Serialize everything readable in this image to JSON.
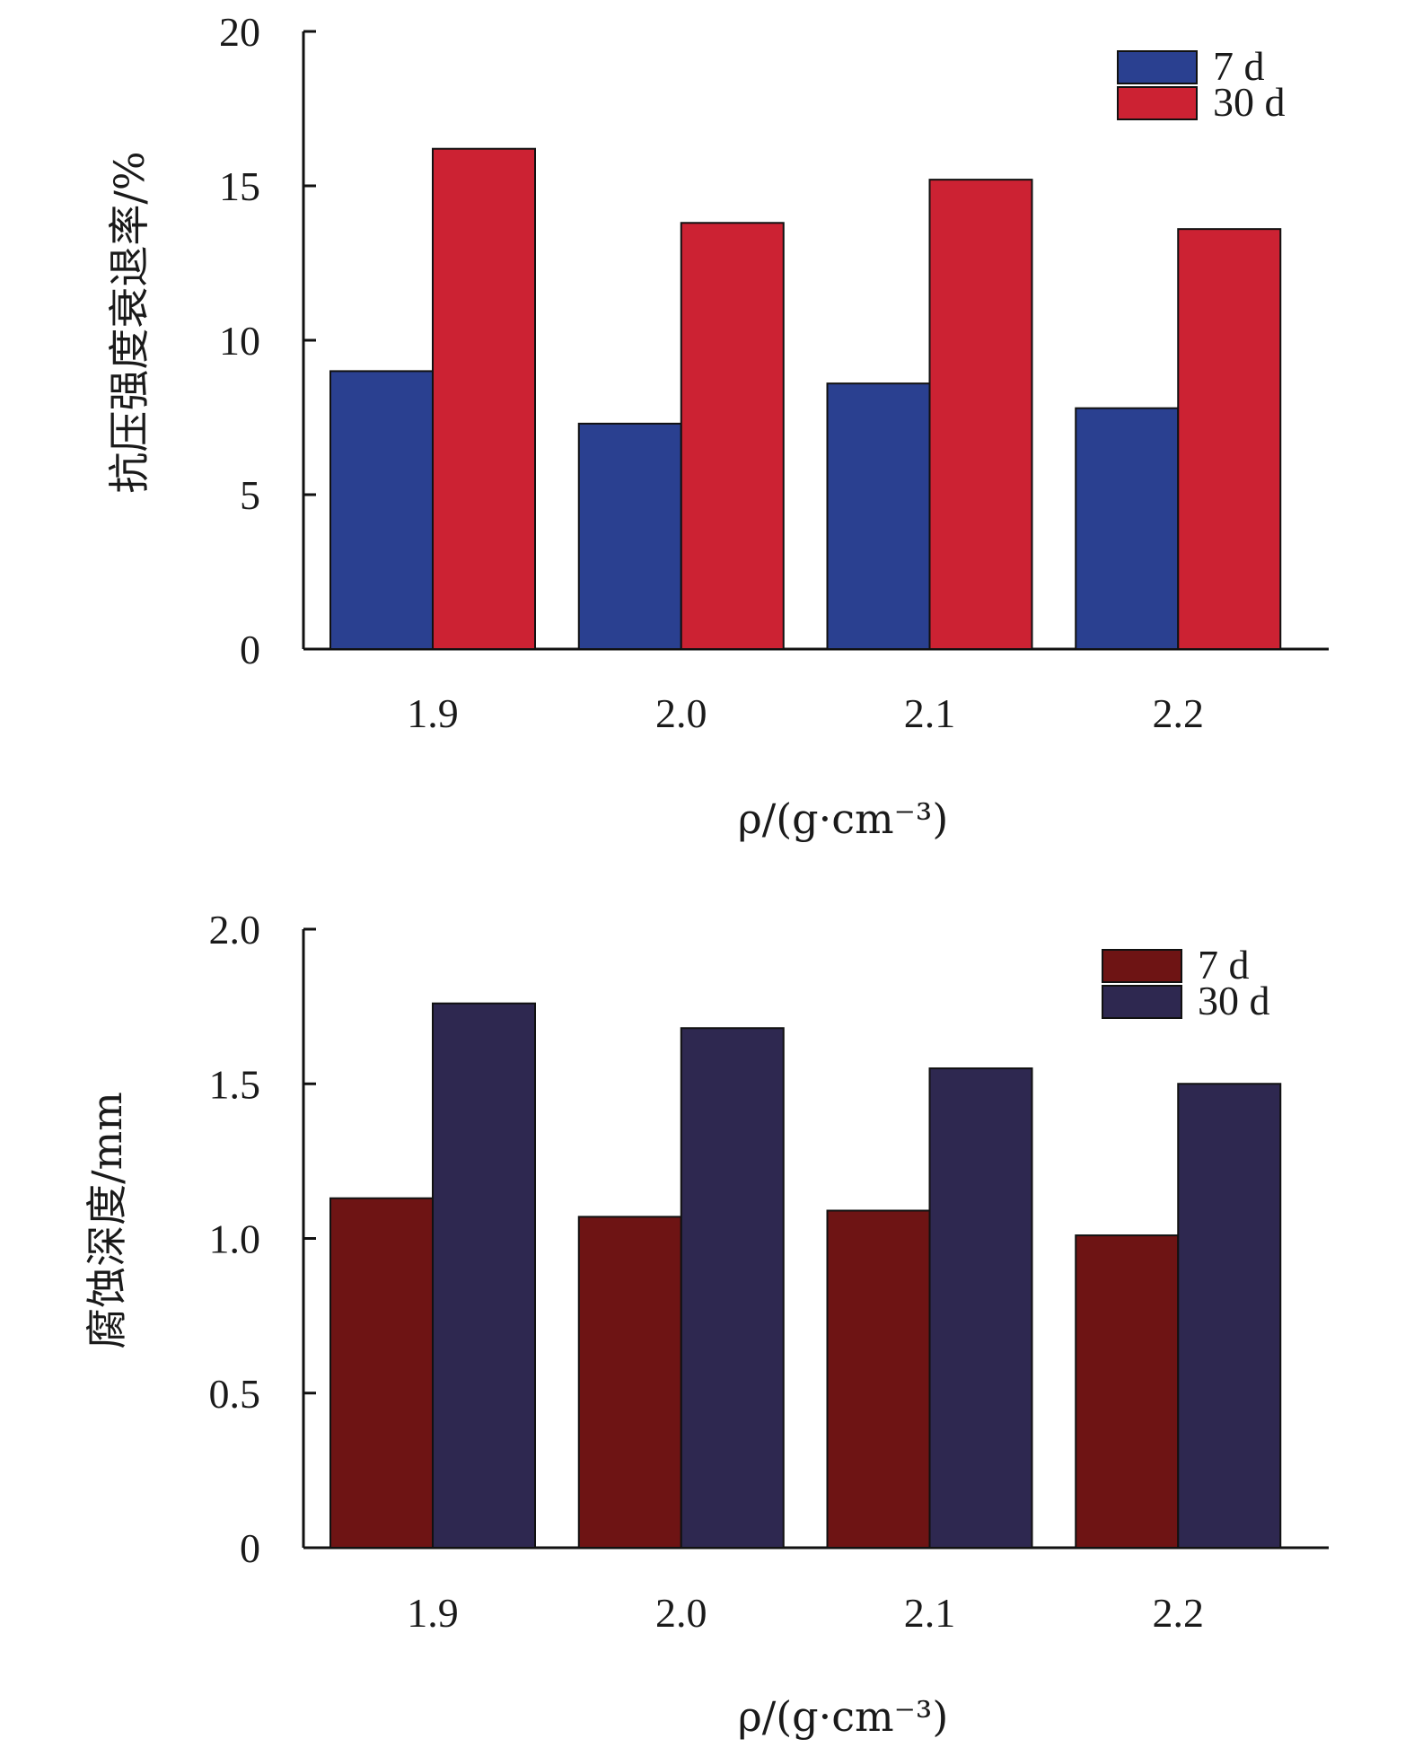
{
  "chart_data": [
    {
      "type": "bar",
      "categories": [
        "1.9",
        "2.0",
        "2.1",
        "2.2"
      ],
      "series": [
        {
          "name": "7 d",
          "color": "#2a4090",
          "values": [
            9.0,
            7.3,
            8.6,
            7.8
          ]
        },
        {
          "name": "30 d",
          "color": "#cc2233",
          "values": [
            16.2,
            13.8,
            15.2,
            13.6
          ]
        }
      ],
      "ylim": [
        0,
        20
      ],
      "yticks": [
        0,
        5,
        10,
        15,
        20
      ],
      "ylabel": "抗压强度衰退率/%",
      "xlabel": "ρ/(g·cm⁻³)",
      "legend": "top-right",
      "grid": false
    },
    {
      "type": "bar",
      "categories": [
        "1.9",
        "2.0",
        "2.1",
        "2.2"
      ],
      "series": [
        {
          "name": "7 d",
          "color": "#6e1414",
          "values": [
            1.13,
            1.07,
            1.09,
            1.01
          ]
        },
        {
          "name": "30 d",
          "color": "#2e2850",
          "values": [
            1.76,
            1.68,
            1.55,
            1.5
          ]
        }
      ],
      "ylim": [
        0,
        2.0
      ],
      "yticks": [
        "0",
        "0.5",
        "1.0",
        "1.5",
        "2.0"
      ],
      "ylabel": "腐蚀深度/mm",
      "xlabel": "ρ/(g·cm⁻³)",
      "legend": "top-right",
      "grid": false
    }
  ]
}
